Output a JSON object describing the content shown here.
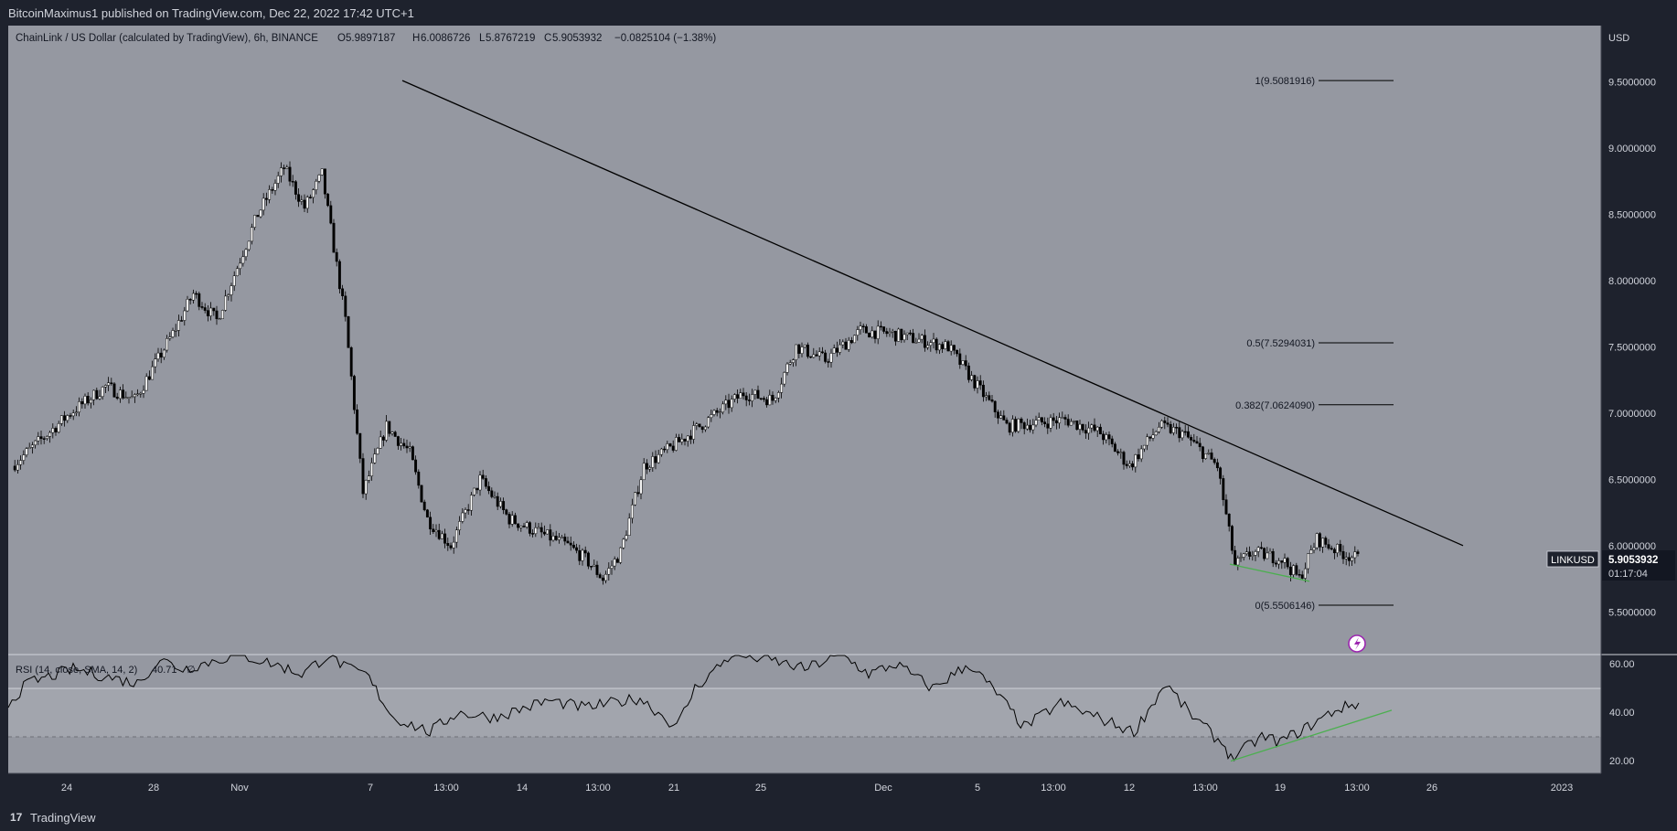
{
  "header": {
    "publish_text": "BitcoinMaximus1 published on TradingView.com, Dec 22, 2022 17:42 UTC+1"
  },
  "legend": {
    "symbol_desc": "ChainLink / US Dollar (calculated by TradingView), 6h, BINANCE",
    "o_label": "O",
    "o_value": "5.9897187",
    "h_label": "H",
    "h_value": "6.0086726",
    "l_label": "L",
    "l_value": "5.8767219",
    "c_label": "C",
    "c_value": "5.9053932",
    "change": "−0.0825104 (−1.38%)"
  },
  "price_axis": {
    "currency": "USD",
    "ticks": [
      "9.5000000",
      "9.0000000",
      "8.5000000",
      "8.0000000",
      "7.5000000",
      "7.0000000",
      "6.5000000",
      "6.0000000",
      "5.5000000"
    ]
  },
  "last_price": {
    "symbol": "LINKUSD",
    "value": "5.9053932",
    "countdown": "01:17:04"
  },
  "fib_levels": [
    {
      "label": "1(9.5081916)",
      "price": 9.5081916
    },
    {
      "label": "0.5(7.5294031)",
      "price": 7.5294031
    },
    {
      "label": "0.382(7.0624090)",
      "price": 7.062409
    },
    {
      "label": "0(5.5506146)",
      "price": 5.5506146
    }
  ],
  "rsi": {
    "legend_label": "RSI (14, close, SMA, 14, 2)",
    "legend_value": "40.71",
    "legend_extra": "∅",
    "ticks": [
      "60.00",
      "40.00",
      "20.00"
    ]
  },
  "time_axis": {
    "labels": [
      "24",
      "28",
      "Nov",
      "7",
      "13:00",
      "14",
      "13:00",
      "21",
      "25",
      "Dec",
      "5",
      "13:00",
      "12",
      "13:00",
      "19",
      "13:00",
      "26",
      "2023"
    ]
  },
  "footer": {
    "logo_glyph": "17",
    "brand": "TradingView"
  },
  "colors": {
    "background": "#1e222d",
    "pane": "#9598a1",
    "candle_up": "#ffffff",
    "candle_down": "#000000",
    "support_line": "#4caf50",
    "alert_icon": "#9c27b0"
  }
}
